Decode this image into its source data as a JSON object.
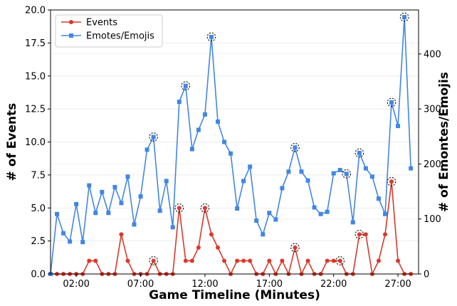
{
  "chart_data": {
    "type": "line",
    "title": "",
    "xlabel": "Game Timeline (Minutes)",
    "ylabel_left": "# of Events",
    "ylabel_right": "# of Emontes/Emojis",
    "xlim": [
      0,
      28.6
    ],
    "ylim_left": [
      0,
      20
    ],
    "ylim_right": [
      0,
      480
    ],
    "x_ticks": [
      2,
      7,
      12,
      17,
      22,
      27
    ],
    "x_tick_labels": [
      "02:00",
      "07:00",
      "12:00",
      "17:00",
      "22:00",
      "27:00"
    ],
    "y_left_ticks": [
      0,
      2.5,
      5,
      7.5,
      10,
      12.5,
      15,
      17.5,
      20
    ],
    "y_left_tick_labels": [
      "0.0",
      "2.5",
      "5.0",
      "7.5",
      "10.0",
      "12.5",
      "15.0",
      "17.5",
      "20.0"
    ],
    "y_right_ticks": [
      0,
      100,
      200,
      300,
      400
    ],
    "y_right_tick_labels": [
      "0",
      "100",
      "200",
      "300",
      "400"
    ],
    "legend_position": "top-left",
    "grid": "horizontal",
    "series": [
      {
        "name": "Events",
        "axis": "left",
        "marker": "circle",
        "color": "#d9392b",
        "x": [
          0,
          0.5,
          1,
          1.5,
          2,
          2.5,
          3,
          3.5,
          4,
          4.5,
          5,
          5.5,
          6,
          6.5,
          7,
          7.5,
          8,
          8.5,
          9,
          9.5,
          10,
          10.5,
          11,
          11.5,
          12,
          12.5,
          13,
          13.5,
          14,
          14.5,
          15,
          15.5,
          16,
          16.5,
          17,
          17.5,
          18,
          18.5,
          19,
          19.5,
          20,
          20.5,
          21,
          21.5,
          22,
          22.5,
          23,
          23.5,
          24,
          24.5,
          25,
          25.5,
          26,
          26.5,
          27,
          27.5,
          28
        ],
        "values": [
          0,
          0,
          0,
          0,
          0,
          0,
          1,
          1,
          0,
          0,
          0,
          3,
          1,
          0,
          0,
          0,
          1,
          0,
          0,
          0,
          5,
          1,
          1,
          2,
          5,
          3,
          2,
          1,
          0,
          1,
          1,
          1,
          0,
          0,
          1,
          0,
          1,
          0,
          2,
          0,
          1,
          0,
          0,
          1,
          1,
          1,
          0,
          0,
          3,
          3,
          0,
          1,
          3,
          7,
          1,
          0,
          0
        ],
        "highlighted_x": [
          8,
          10,
          12,
          19,
          22.5,
          24,
          26.5
        ]
      },
      {
        "name": "Emotes/Emojis",
        "axis": "right",
        "marker": "square",
        "color": "#4286e4",
        "x": [
          0,
          0.5,
          1,
          1.5,
          2,
          2.5,
          3,
          3.5,
          4,
          4.5,
          5,
          5.5,
          6,
          6.5,
          7,
          7.5,
          8,
          8.5,
          9,
          9.5,
          10,
          10.5,
          11,
          11.5,
          12,
          12.5,
          13,
          13.5,
          14,
          14.5,
          15,
          15.5,
          16,
          16.5,
          17,
          17.5,
          18,
          18.5,
          19,
          19.5,
          20,
          20.5,
          21,
          21.5,
          22,
          22.5,
          23,
          23.5,
          24,
          24.5,
          25,
          25.5,
          26,
          26.5,
          27,
          27.5,
          28
        ],
        "values": [
          0,
          109,
          74,
          59,
          127,
          58,
          161,
          111,
          149,
          111,
          158,
          129,
          177,
          90,
          141,
          226,
          249,
          115,
          169,
          85,
          313,
          342,
          227,
          262,
          290,
          431,
          277,
          240,
          219,
          119,
          169,
          195,
          97,
          72,
          111,
          99,
          156,
          186,
          230,
          186,
          170,
          121,
          109,
          113,
          183,
          189,
          182,
          94,
          220,
          192,
          177,
          137,
          109,
          312,
          269,
          467,
          192
        ],
        "highlighted_x": [
          8,
          10.5,
          12.5,
          19,
          23,
          24,
          26.5,
          27.5
        ]
      }
    ]
  }
}
